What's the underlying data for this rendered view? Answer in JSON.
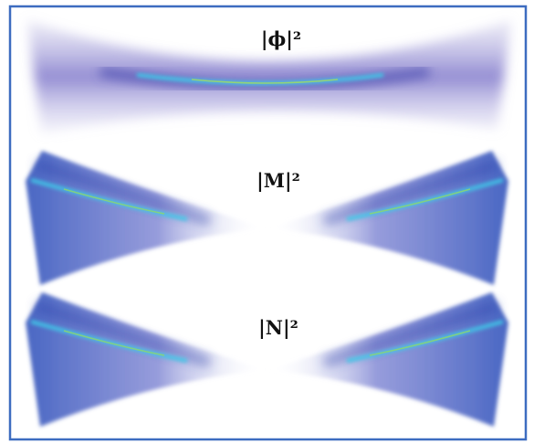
{
  "panels": [
    {
      "label": "|ϕ|²"
    },
    {
      "label": "|M|²"
    },
    {
      "label": "|N|²"
    }
  ]
}
